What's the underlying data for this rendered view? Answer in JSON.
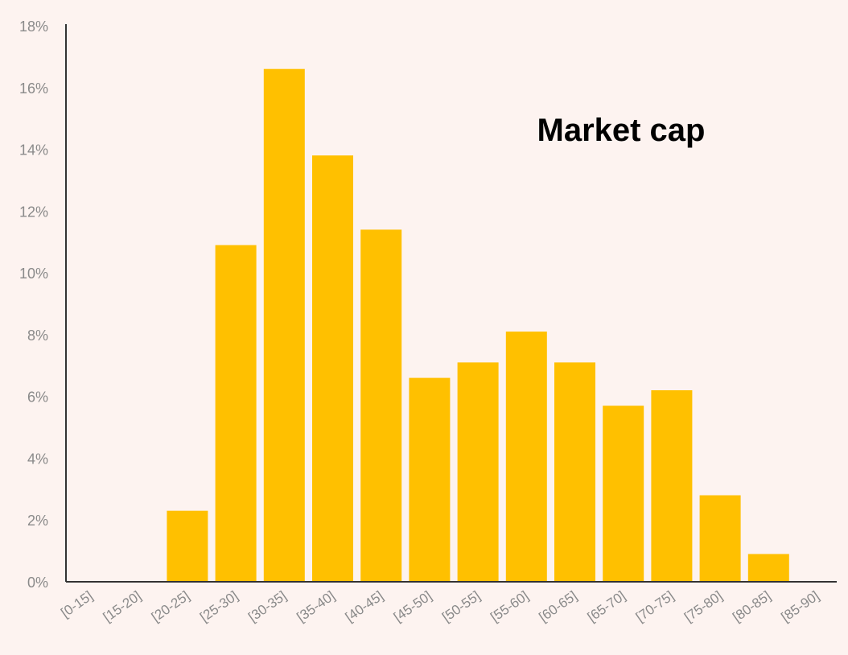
{
  "chart_data": {
    "type": "bar",
    "title": "Market cap",
    "xlabel": "",
    "ylabel": "",
    "categories": [
      "[0-15]",
      "[15-20]",
      "[20-25]",
      "[25-30]",
      "[30-35]",
      "[35-40]",
      "[40-45]",
      "[45-50]",
      "[50-55]",
      "[55-60]",
      "[60-65]",
      "[65-70]",
      "[70-75]",
      "[75-80]",
      "[80-85]",
      "[85-90]"
    ],
    "values": [
      0,
      0,
      2.3,
      10.9,
      16.6,
      13.8,
      11.4,
      6.6,
      7.1,
      8.1,
      7.1,
      5.7,
      6.2,
      2.8,
      0.9,
      0
    ],
    "ylim": [
      0,
      18
    ],
    "yticks": [
      0,
      2,
      4,
      6,
      8,
      10,
      12,
      14,
      16,
      18
    ],
    "ytick_labels": [
      "0%",
      "2%",
      "4%",
      "6%",
      "8%",
      "10%",
      "12%",
      "14%",
      "16%",
      "18%"
    ],
    "grid": false,
    "legend": "none",
    "colors": {
      "bar": "#FFC000",
      "background": "#FDF3F0",
      "axis": "#333333"
    }
  }
}
